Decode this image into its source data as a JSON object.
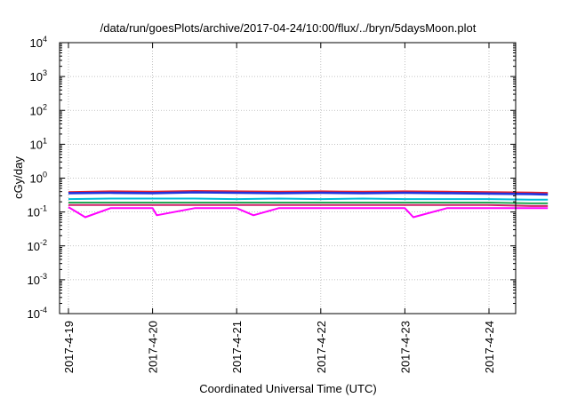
{
  "chart_data": {
    "type": "line",
    "title": "/data/run/goesPlots/archive/2017-04-24/10:00/flux/../bryn/5daysMoon.plot",
    "xlabel": "Coordinated Universal Time (UTC)",
    "ylabel": "cGy/day",
    "yscale": "log",
    "ylim_exponents": [
      -4,
      4
    ],
    "y_ticks": [
      {
        "base": "10",
        "exp": "4"
      },
      {
        "base": "10",
        "exp": "3"
      },
      {
        "base": "10",
        "exp": "2"
      },
      {
        "base": "10",
        "exp": "1"
      },
      {
        "base": "10",
        "exp": "0"
      },
      {
        "base": "10",
        "exp": "-1"
      },
      {
        "base": "10",
        "exp": "-2"
      },
      {
        "base": "10",
        "exp": "-3"
      },
      {
        "base": "10",
        "exp": "-4"
      }
    ],
    "x_ticks": [
      "2017-4-19",
      "2017-4-20",
      "2017-4-21",
      "2017-4-22",
      "2017-4-23",
      "2017-4-24"
    ],
    "xlim_days": [
      0,
      5.7
    ],
    "grid": true,
    "series": [
      {
        "color": "#e8202a",
        "values": [
          [
            0,
            0.38
          ],
          [
            0.5,
            0.4
          ],
          [
            1,
            0.39
          ],
          [
            1.5,
            0.41
          ],
          [
            2,
            0.4
          ],
          [
            2.5,
            0.39
          ],
          [
            3,
            0.4
          ],
          [
            3.5,
            0.39
          ],
          [
            4,
            0.4
          ],
          [
            4.5,
            0.39
          ],
          [
            5,
            0.38
          ],
          [
            5.5,
            0.37
          ],
          [
            5.7,
            0.36
          ]
        ]
      },
      {
        "color": "#2233dd",
        "values": [
          [
            0,
            0.36
          ],
          [
            0.5,
            0.37
          ],
          [
            1,
            0.36
          ],
          [
            1.5,
            0.38
          ],
          [
            2,
            0.37
          ],
          [
            2.5,
            0.36
          ],
          [
            3,
            0.37
          ],
          [
            3.5,
            0.36
          ],
          [
            4,
            0.37
          ],
          [
            4.5,
            0.36
          ],
          [
            5,
            0.35
          ],
          [
            5.5,
            0.34
          ],
          [
            5.7,
            0.33
          ]
        ]
      },
      {
        "color": "#00bcd8",
        "values": [
          [
            0,
            0.24
          ],
          [
            0.5,
            0.25
          ],
          [
            1,
            0.25
          ],
          [
            1.5,
            0.25
          ],
          [
            2,
            0.24
          ],
          [
            2.5,
            0.25
          ],
          [
            3,
            0.24
          ],
          [
            3.5,
            0.25
          ],
          [
            4,
            0.24
          ],
          [
            4.5,
            0.24
          ],
          [
            5,
            0.24
          ],
          [
            5.5,
            0.23
          ],
          [
            5.7,
            0.23
          ]
        ]
      },
      {
        "color": "#22aa55",
        "values": [
          [
            0,
            0.19
          ],
          [
            0.5,
            0.19
          ],
          [
            1,
            0.19
          ],
          [
            1.5,
            0.19
          ],
          [
            2,
            0.19
          ],
          [
            2.5,
            0.19
          ],
          [
            3,
            0.19
          ],
          [
            3.5,
            0.19
          ],
          [
            4,
            0.19
          ],
          [
            4.5,
            0.19
          ],
          [
            5,
            0.19
          ],
          [
            5.5,
            0.18
          ],
          [
            5.7,
            0.18
          ]
        ]
      },
      {
        "color": "#cc2266",
        "values": [
          [
            0,
            0.16
          ],
          [
            0.5,
            0.16
          ],
          [
            1,
            0.16
          ],
          [
            1.5,
            0.16
          ],
          [
            2,
            0.16
          ],
          [
            2.5,
            0.16
          ],
          [
            3,
            0.16
          ],
          [
            3.5,
            0.16
          ],
          [
            4,
            0.16
          ],
          [
            4.5,
            0.16
          ],
          [
            5,
            0.16
          ],
          [
            5.5,
            0.15
          ],
          [
            5.7,
            0.15
          ]
        ]
      },
      {
        "color": "#ff00ff",
        "values": [
          [
            0,
            0.14
          ],
          [
            0.2,
            0.07
          ],
          [
            0.5,
            0.13
          ],
          [
            1,
            0.13
          ],
          [
            1.05,
            0.08
          ],
          [
            1.5,
            0.13
          ],
          [
            2,
            0.13
          ],
          [
            2.2,
            0.08
          ],
          [
            2.5,
            0.13
          ],
          [
            3,
            0.13
          ],
          [
            3.5,
            0.13
          ],
          [
            4,
            0.13
          ],
          [
            4.1,
            0.07
          ],
          [
            4.5,
            0.13
          ],
          [
            5,
            0.13
          ],
          [
            5.5,
            0.13
          ],
          [
            5.7,
            0.13
          ]
        ]
      }
    ]
  }
}
